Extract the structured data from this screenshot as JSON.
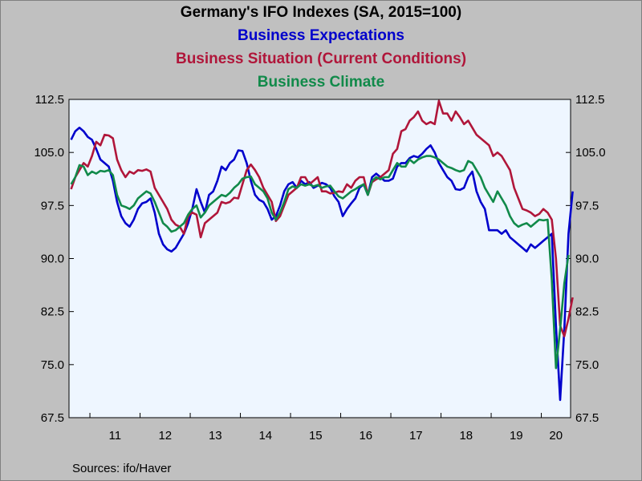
{
  "title": "Germany's IFO Indexes (SA, 2015=100)",
  "legend": [
    {
      "label": "Business Expectations",
      "color": "#0000cc"
    },
    {
      "label": "Business Situation (Current Conditions)",
      "color": "#b0163a"
    },
    {
      "label": "Business Climate",
      "color": "#118a4a"
    }
  ],
  "source": "Sources:  ifo/Haver",
  "chart_data": {
    "type": "line",
    "title": "Germany's IFO Indexes (SA, 2015=100)",
    "ylim": [
      67.5,
      112.5
    ],
    "yticks": [
      67.5,
      75.0,
      82.5,
      90.0,
      97.5,
      105.0,
      112.5
    ],
    "ytick_labels": [
      "67.5",
      "75.0",
      "82.5",
      "90.0",
      "97.5",
      "105.0",
      "112.5"
    ],
    "x_start": "2010-08",
    "x_end": "2020-07",
    "x_tick_labels": [
      "11",
      "12",
      "13",
      "14",
      "15",
      "16",
      "17",
      "18",
      "19",
      "20"
    ],
    "grid": false,
    "y_axis_both_sides": true,
    "series": [
      {
        "name": "Business Expectations",
        "color": "#0000cc",
        "values": [
          106.8,
          108.0,
          108.5,
          108.0,
          107.2,
          106.8,
          105.5,
          104.0,
          103.5,
          103.0,
          101.0,
          98.0,
          96.0,
          95.0,
          94.5,
          95.5,
          97.0,
          97.8,
          98.0,
          98.5,
          96.5,
          93.5,
          92.0,
          91.3,
          91.0,
          91.5,
          92.5,
          93.5,
          95.0,
          97.0,
          99.8,
          98.0,
          96.5,
          99.0,
          99.5,
          101.0,
          103.0,
          102.5,
          103.5,
          104.0,
          105.3,
          105.2,
          103.5,
          101.0,
          99.0,
          98.3,
          98.0,
          97.0,
          95.5,
          96.0,
          97.5,
          99.5,
          100.5,
          100.8,
          100.0,
          101.0,
          100.5,
          100.8,
          100.0,
          100.3,
          100.7,
          100.5,
          100.0,
          98.8,
          98.0,
          96.0,
          97.0,
          97.8,
          98.5,
          100.0,
          100.5,
          99.0,
          101.5,
          102.0,
          101.5,
          101.0,
          101.0,
          101.3,
          103.0,
          103.5,
          103.5,
          104.2,
          104.5,
          104.3,
          104.8,
          105.5,
          106.0,
          105.0,
          103.5,
          102.5,
          101.5,
          101.0,
          99.8,
          99.7,
          100.0,
          101.5,
          102.3,
          99.5,
          98.0,
          97.0,
          94.0,
          94.0,
          94.0,
          93.5,
          94.0,
          93.0,
          92.5,
          92.0,
          91.5,
          91.0,
          92.0,
          91.5,
          92.0,
          92.5,
          93.0,
          93.5,
          80.5,
          70.0,
          80.0,
          93.5,
          99.5
        ]
      },
      {
        "name": "Business Situation (Current Conditions)",
        "color": "#b0163a",
        "values": [
          99.8,
          101.5,
          102.5,
          103.5,
          103.0,
          104.5,
          106.5,
          106.0,
          107.5,
          107.4,
          107.0,
          104.0,
          102.5,
          101.5,
          102.3,
          102.0,
          102.5,
          102.4,
          102.6,
          102.3,
          100.0,
          99.0,
          98.0,
          97.0,
          95.5,
          94.8,
          94.5,
          93.5,
          96.0,
          96.5,
          96.2,
          93.0,
          95.0,
          95.5,
          96.0,
          96.5,
          98.0,
          97.8,
          98.0,
          98.6,
          98.5,
          100.5,
          102.5,
          103.3,
          102.5,
          101.5,
          100.0,
          99.0,
          98.0,
          95.3,
          96.0,
          97.5,
          99.0,
          99.5,
          100.0,
          101.5,
          101.5,
          100.5,
          101.0,
          101.5,
          99.5,
          99.5,
          99.2,
          99.3,
          99.5,
          99.4,
          100.5,
          100.0,
          101.0,
          101.5,
          101.5,
          99.0,
          100.8,
          101.2,
          101.5,
          102.0,
          102.5,
          104.8,
          105.5,
          108.0,
          108.3,
          109.5,
          110.0,
          110.8,
          109.5,
          109.0,
          109.3,
          109.0,
          112.3,
          110.5,
          110.5,
          109.5,
          110.8,
          110.0,
          109.0,
          109.5,
          108.5,
          107.5,
          107.0,
          106.5,
          106.0,
          104.5,
          105.0,
          104.5,
          103.5,
          102.5,
          100.0,
          98.5,
          97.0,
          96.8,
          96.5,
          96.0,
          96.3,
          97.0,
          96.5,
          95.5,
          90.0,
          80.5,
          79.0,
          81.5,
          84.5
        ]
      },
      {
        "name": "Business Climate",
        "color": "#118a4a",
        "values": [
          100.5,
          101.5,
          103.2,
          103.0,
          101.8,
          102.3,
          102.0,
          102.4,
          102.3,
          102.5,
          101.8,
          99.0,
          97.5,
          97.3,
          97.0,
          97.5,
          98.5,
          99.0,
          99.5,
          99.2,
          98.0,
          96.5,
          95.0,
          94.5,
          93.8,
          94.0,
          94.5,
          95.0,
          96.2,
          97.0,
          97.5,
          95.8,
          96.5,
          97.5,
          98.0,
          98.5,
          99.0,
          98.8,
          99.3,
          100.0,
          100.5,
          101.3,
          101.5,
          101.6,
          100.5,
          100.0,
          99.5,
          98.5,
          96.5,
          95.5,
          96.5,
          98.0,
          99.8,
          100.2,
          100.0,
          100.5,
          100.3,
          100.5,
          100.2,
          100.4,
          100.0,
          100.2,
          100.3,
          99.5,
          98.8,
          98.5,
          99.0,
          99.5,
          99.8,
          100.2,
          100.5,
          99.0,
          101.0,
          101.5,
          101.2,
          101.5,
          101.5,
          102.5,
          103.5,
          103.0,
          103.0,
          104.0,
          103.5,
          104.0,
          104.3,
          104.5,
          104.5,
          104.3,
          104.0,
          103.5,
          103.0,
          102.8,
          102.5,
          102.3,
          102.5,
          103.8,
          103.5,
          102.5,
          101.5,
          100.0,
          99.0,
          98.0,
          99.5,
          98.5,
          97.5,
          96.0,
          95.0,
          94.5,
          94.8,
          95.0,
          94.5,
          95.0,
          95.5,
          95.4,
          95.5,
          87.0,
          74.5,
          80.0,
          86.5,
          90.5
        ]
      }
    ]
  }
}
